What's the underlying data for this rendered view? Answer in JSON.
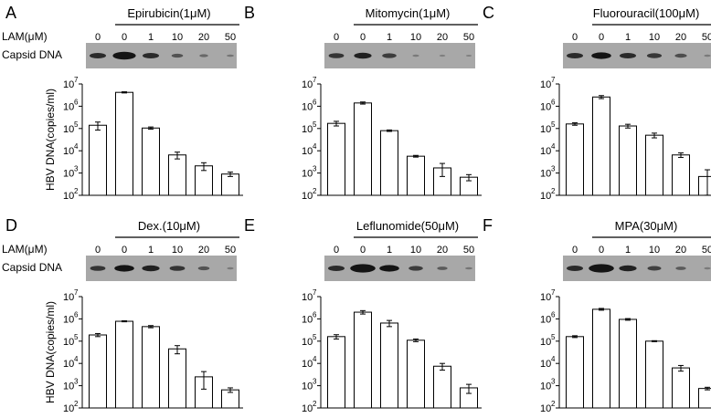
{
  "figure": {
    "ylabel": "HBV DNA(copies/ml)",
    "lam_label": "LAM(μM)",
    "capsid_label": "Capsid DNA",
    "bar_color": "#ffffff",
    "stroke_color": "#000000",
    "blot_background": "#a8a8a8",
    "band_color": "#141414"
  },
  "chart_data": [
    {
      "panel": "A",
      "type": "bar",
      "title": "Epirubicin(1μM)",
      "xlabel": "LAM(μM)",
      "ylabel": "HBV DNA(copies/ml)",
      "yscale": "log",
      "ylim": [
        100,
        10000000
      ],
      "yticks": [
        "10",
        "10",
        "10",
        "10",
        "10",
        "10"
      ],
      "ytick_exponents": [
        "7",
        "6",
        "5",
        "4",
        "3",
        "2"
      ],
      "categories": [
        "0",
        "0",
        "1",
        "10",
        "20",
        "50"
      ],
      "values": [
        140000,
        4200000,
        105000,
        6500,
        2100,
        900
      ],
      "errors": [
        55000,
        250000,
        12000,
        2200,
        800,
        200
      ],
      "blot_bands": [
        1.0,
        1.6,
        1.0,
        0.55,
        0.3,
        0.15
      ]
    },
    {
      "panel": "B",
      "type": "bar",
      "title": "Mitomycin(1μM)",
      "xlabel": "LAM(μM)",
      "ylabel": "",
      "yscale": "log",
      "ylim": [
        100,
        10000000
      ],
      "yticks": [
        "10",
        "10",
        "10",
        "10",
        "10",
        "10"
      ],
      "ytick_exponents": [
        "7",
        "6",
        "5",
        "4",
        "3",
        "2"
      ],
      "categories": [
        "0",
        "0",
        "1",
        "10",
        "20",
        "50"
      ],
      "values": [
        170000,
        1400000,
        80000,
        5700,
        1700,
        650
      ],
      "errors": [
        40000,
        150000,
        6000,
        500,
        1000,
        200
      ],
      "blot_bands": [
        0.9,
        1.1,
        0.8,
        0.1,
        0.05,
        0.02
      ]
    },
    {
      "panel": "C",
      "type": "bar",
      "title": "Fluorouracil(100μM)",
      "xlabel": "LAM(μM)",
      "ylabel": "",
      "yscale": "log",
      "ylim": [
        100,
        10000000
      ],
      "yticks": [
        "10",
        "10",
        "10",
        "10",
        "10",
        "10"
      ],
      "ytick_exponents": [
        "7",
        "6",
        "5",
        "4",
        "3",
        "2"
      ],
      "categories": [
        "0",
        "0",
        "1",
        "10",
        "20",
        "50"
      ],
      "values": [
        160000,
        2600000,
        130000,
        50000,
        6500,
        700
      ],
      "errors": [
        20000,
        400000,
        25000,
        12000,
        1500,
        700
      ],
      "blot_bands": [
        1.0,
        1.3,
        1.0,
        0.85,
        0.6,
        0.1
      ]
    },
    {
      "panel": "D",
      "type": "bar",
      "title": "Dex.(10μM)",
      "xlabel": "LAM(μM)",
      "ylabel": "HBV DNA(copies/ml)",
      "yscale": "log",
      "ylim": [
        100,
        10000000
      ],
      "yticks": [
        "10",
        "10",
        "10",
        "10",
        "10",
        "10"
      ],
      "ytick_exponents": [
        "7",
        "6",
        "5",
        "4",
        "3",
        "2"
      ],
      "categories": [
        "0",
        "0",
        "1",
        "10",
        "20",
        "50"
      ],
      "values": [
        190000,
        780000,
        450000,
        45000,
        2500,
        650
      ],
      "errors": [
        30000,
        40000,
        50000,
        18000,
        1800,
        150
      ],
      "blot_bands": [
        0.9,
        1.3,
        1.1,
        0.9,
        0.55,
        0.1
      ]
    },
    {
      "panel": "E",
      "type": "bar",
      "title": "Leflunomide(50μM)",
      "xlabel": "LAM(μM)",
      "ylabel": "",
      "yscale": "log",
      "ylim": [
        100,
        10000000
      ],
      "yticks": [
        "10",
        "10",
        "10",
        "10",
        "10",
        "10"
      ],
      "ytick_exponents": [
        "7",
        "6",
        "5",
        "4",
        "3",
        "2"
      ],
      "categories": [
        "0",
        "0",
        "1",
        "10",
        "20",
        "50"
      ],
      "values": [
        160000,
        2000000,
        650000,
        110000,
        7500,
        800
      ],
      "errors": [
        35000,
        350000,
        200000,
        15000,
        2500,
        350
      ],
      "blot_bands": [
        1.0,
        1.8,
        1.3,
        0.8,
        0.45,
        0.15
      ]
    },
    {
      "panel": "F",
      "type": "bar",
      "title": "MPA(30μM)",
      "xlabel": "LAM(μM)",
      "ylabel": "",
      "yscale": "log",
      "ylim": [
        100,
        10000000
      ],
      "yticks": [
        "10",
        "10",
        "10",
        "10",
        "10",
        "10"
      ],
      "ytick_exponents": [
        "7",
        "6",
        "5",
        "4",
        "3",
        "2"
      ],
      "categories": [
        "0",
        "0",
        "1",
        "10",
        "20",
        "50"
      ],
      "values": [
        160000,
        2700000,
        950000,
        100000,
        6300,
        750
      ],
      "errors": [
        15000,
        250000,
        80000,
        5000,
        1800,
        100
      ],
      "blot_bands": [
        1.0,
        1.8,
        1.1,
        0.75,
        0.45,
        0.1
      ]
    }
  ]
}
